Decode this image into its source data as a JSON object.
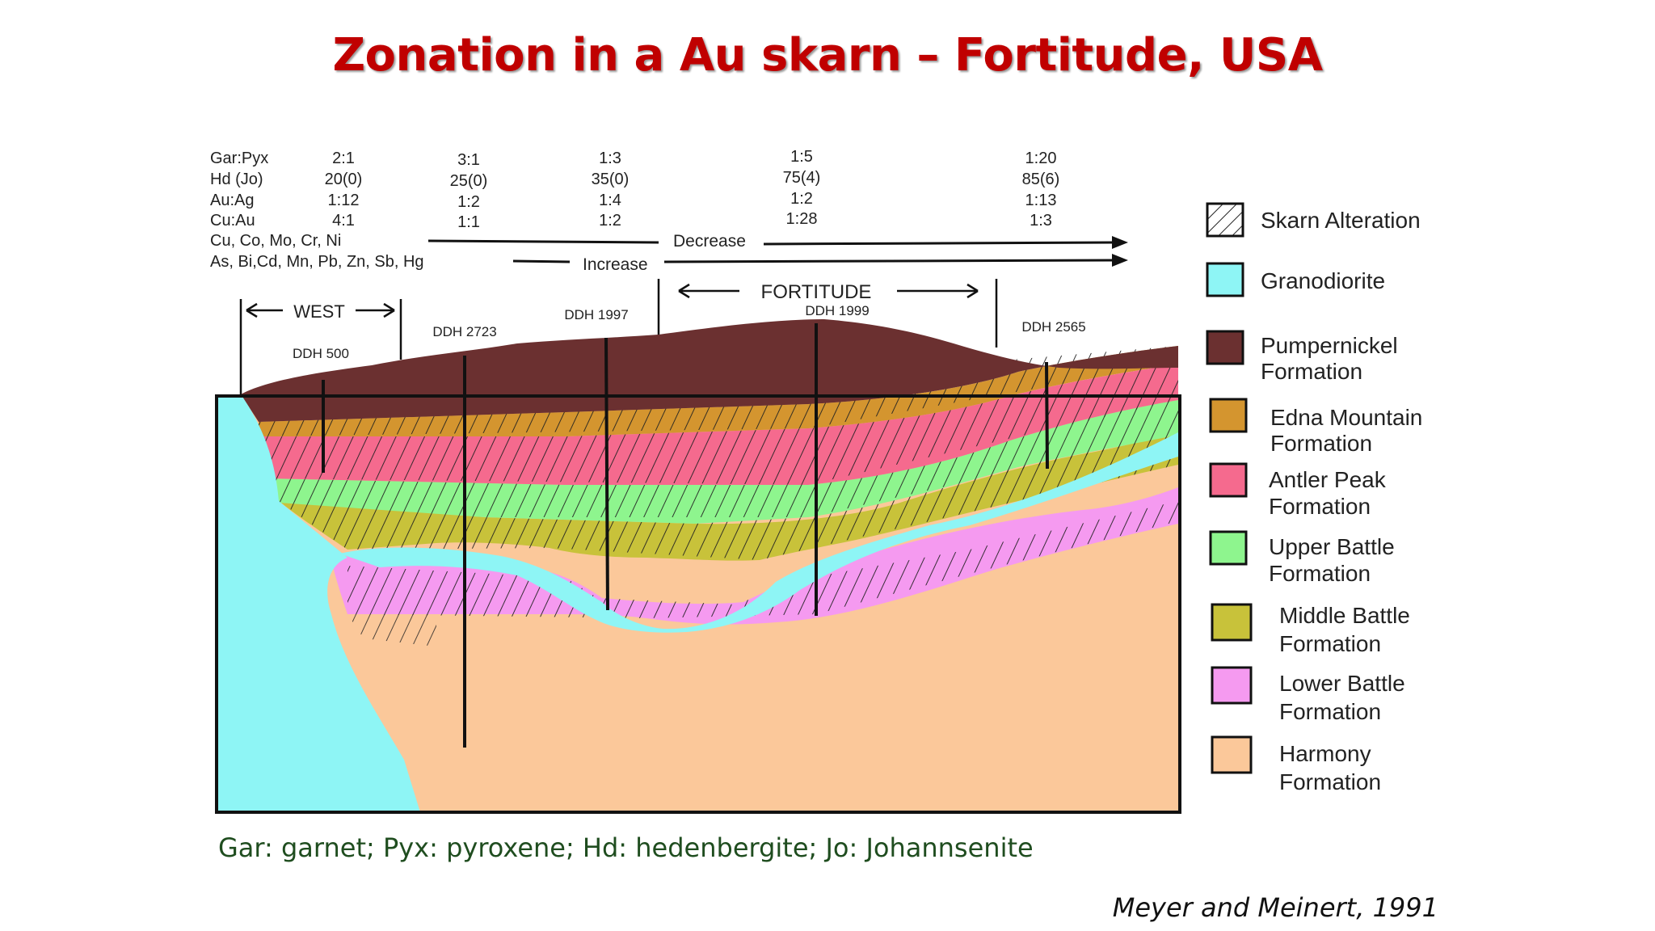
{
  "title": "Zonation in a Au skarn – Fortitude, USA",
  "ratio_rows": {
    "labels": [
      "Gar:Pyx",
      "Hd (Jo)",
      "Au:Ag",
      "Cu:Au",
      "Cu, Co, Mo, Cr, Ni",
      "As, Bi,Cd, Mn, Pb, Zn, Sb, Hg"
    ],
    "columns": [
      [
        "2:1",
        "20(0)",
        "1:12",
        "4:1"
      ],
      [
        "3:1",
        "25(0)",
        "1:2",
        "1:1"
      ],
      [
        "1:3",
        "35(0)",
        "1:4",
        "1:2"
      ],
      [
        "1:5",
        "75(4)",
        "1:2",
        "1:28"
      ],
      [
        "1:20",
        "85(6)",
        "1:13",
        "1:3"
      ]
    ]
  },
  "trends": {
    "decrease": "Decrease",
    "increase": "Increase"
  },
  "zones": {
    "west": "WEST",
    "fortitude": "FORTITUDE"
  },
  "drill_holes": [
    "DDH 500",
    "DDH 2723",
    "DDH 1997",
    "DDH 1999",
    "DDH 2565"
  ],
  "legend": [
    {
      "line1": "Skarn Alteration",
      "line2": "",
      "color": "#ffffff"
    },
    {
      "line1": "Granodiorite",
      "line2": "",
      "color": "#8ef5f5"
    },
    {
      "line1": "Pumpernickel",
      "line2": "Formation",
      "color": "#6b3030"
    },
    {
      "line1": "Edna Mountain",
      "line2": "Formation",
      "color": "#d4952f"
    },
    {
      "line1": "Antler Peak",
      "line2": "Formation",
      "color": "#f56a8e"
    },
    {
      "line1": "Upper Battle",
      "line2": "Formation",
      "color": "#8ef58e"
    },
    {
      "line1": "Middle Battle",
      "line2": "Formation",
      "color": "#c8c23a"
    },
    {
      "line1": "Lower Battle",
      "line2": "Formation",
      "color": "#f59af0"
    },
    {
      "line1": "Harmony",
      "line2": "Formation",
      "color": "#fbc89a"
    }
  ],
  "footnote": "Gar: garnet; Pyx: pyroxene; Hd: hedenbergite; Jo: Johannsenite",
  "citation": "Meyer and Meinert, 1991"
}
